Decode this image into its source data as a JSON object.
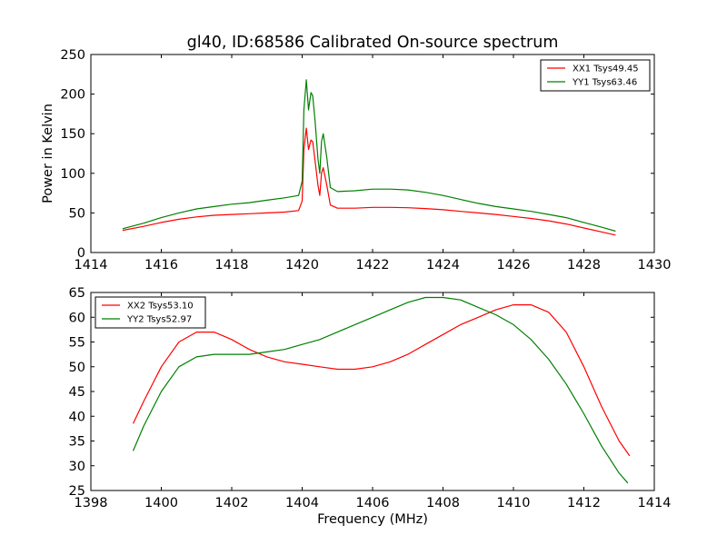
{
  "figure": {
    "background": "#ffffff"
  },
  "chart_data": [
    {
      "type": "line",
      "title": "gl40, ID:68586 Calibrated On-source spectrum",
      "xlabel": "",
      "ylabel": "Power in Kelvin",
      "xlim": [
        1414,
        1430
      ],
      "ylim": [
        0,
        250
      ],
      "xticks": [
        "1414",
        "1416",
        "1418",
        "1420",
        "1422",
        "1424",
        "1426",
        "1428",
        "1430"
      ],
      "yticks": [
        "0",
        "50",
        "100",
        "150",
        "200",
        "250"
      ],
      "grid": false,
      "legend_position": "top-right",
      "series": [
        {
          "name": "XX1 Tsys49.45",
          "color": "#ff0000",
          "x": [
            1414.9,
            1415.5,
            1416.0,
            1416.5,
            1417.0,
            1417.5,
            1418.0,
            1418.5,
            1419.0,
            1419.5,
            1419.9,
            1420.0,
            1420.05,
            1420.12,
            1420.18,
            1420.25,
            1420.3,
            1420.37,
            1420.45,
            1420.5,
            1420.55,
            1420.6,
            1420.7,
            1420.8,
            1421.0,
            1421.5,
            1422.0,
            1422.5,
            1423.0,
            1423.5,
            1424.0,
            1424.5,
            1425.0,
            1425.5,
            1426.0,
            1426.5,
            1427.0,
            1427.5,
            1428.0,
            1428.5,
            1428.9
          ],
          "y": [
            28,
            33,
            38,
            42,
            45,
            47,
            48,
            49,
            50,
            51,
            53,
            65,
            130,
            157,
            130,
            142,
            140,
            115,
            85,
            72,
            100,
            107,
            85,
            60,
            56,
            56,
            57,
            57,
            56.5,
            55.5,
            54,
            52,
            50,
            48,
            45.5,
            43,
            40,
            36,
            31,
            26,
            22
          ]
        },
        {
          "name": "YY1 Tsys63.46",
          "color": "#008000",
          "x": [
            1414.9,
            1415.5,
            1416.0,
            1416.5,
            1417.0,
            1417.5,
            1418.0,
            1418.5,
            1419.0,
            1419.5,
            1419.9,
            1420.0,
            1420.05,
            1420.12,
            1420.18,
            1420.25,
            1420.3,
            1420.37,
            1420.45,
            1420.5,
            1420.55,
            1420.6,
            1420.7,
            1420.8,
            1421.0,
            1421.5,
            1422.0,
            1422.5,
            1423.0,
            1423.5,
            1424.0,
            1424.5,
            1425.0,
            1425.5,
            1426.0,
            1426.5,
            1427.0,
            1427.5,
            1428.0,
            1428.5,
            1428.9
          ],
          "y": [
            30,
            37,
            44,
            50,
            55,
            58,
            61,
            63,
            66,
            69,
            72,
            90,
            180,
            218,
            180,
            202,
            198,
            165,
            118,
            100,
            140,
            150,
            120,
            82,
            77,
            78,
            80,
            80,
            79,
            76,
            72,
            67,
            62,
            58,
            55,
            52,
            48,
            44,
            38,
            32,
            27
          ]
        }
      ]
    },
    {
      "type": "line",
      "title": "",
      "xlabel": "Frequency (MHz)",
      "ylabel": "",
      "xlim": [
        1398,
        1414
      ],
      "ylim": [
        25,
        65
      ],
      "xticks": [
        "1398",
        "1400",
        "1402",
        "1404",
        "1406",
        "1408",
        "1410",
        "1412",
        "1414"
      ],
      "yticks": [
        "25",
        "30",
        "35",
        "40",
        "45",
        "50",
        "55",
        "60",
        "65"
      ],
      "grid": false,
      "legend_position": "top-left",
      "series": [
        {
          "name": "XX2 Tsys53.10",
          "color": "#ff0000",
          "x": [
            1399.2,
            1399.5,
            1400.0,
            1400.5,
            1401.0,
            1401.5,
            1402.0,
            1402.5,
            1403.0,
            1403.5,
            1404.0,
            1404.5,
            1405.0,
            1405.5,
            1406.0,
            1406.5,
            1407.0,
            1407.5,
            1408.0,
            1408.5,
            1409.0,
            1409.5,
            1410.0,
            1410.5,
            1411.0,
            1411.5,
            1412.0,
            1412.5,
            1413.0,
            1413.3
          ],
          "y": [
            38.5,
            43,
            50,
            55,
            57,
            57,
            55.5,
            53.5,
            52,
            51,
            50.5,
            50,
            49.5,
            49.5,
            50,
            51,
            52.5,
            54.5,
            56.5,
            58.5,
            60,
            61.5,
            62.5,
            62.5,
            61,
            57,
            50,
            42,
            35,
            32
          ]
        },
        {
          "name": "YY2 Tsys52.97",
          "color": "#008000",
          "x": [
            1399.2,
            1399.5,
            1400.0,
            1400.5,
            1401.0,
            1401.5,
            1402.0,
            1402.5,
            1403.0,
            1403.5,
            1404.0,
            1404.5,
            1405.0,
            1405.5,
            1406.0,
            1406.5,
            1407.0,
            1407.5,
            1408.0,
            1408.5,
            1409.0,
            1409.5,
            1410.0,
            1410.5,
            1411.0,
            1411.5,
            1412.0,
            1412.5,
            1413.0,
            1413.25
          ],
          "y": [
            33,
            38,
            45,
            50,
            52,
            52.5,
            52.5,
            52.5,
            53,
            53.5,
            54.5,
            55.5,
            57,
            58.5,
            60,
            61.5,
            63,
            64,
            64,
            63.5,
            62,
            60.5,
            58.5,
            55.5,
            51.5,
            46.5,
            40.5,
            34,
            28.5,
            26.5
          ]
        }
      ]
    }
  ]
}
